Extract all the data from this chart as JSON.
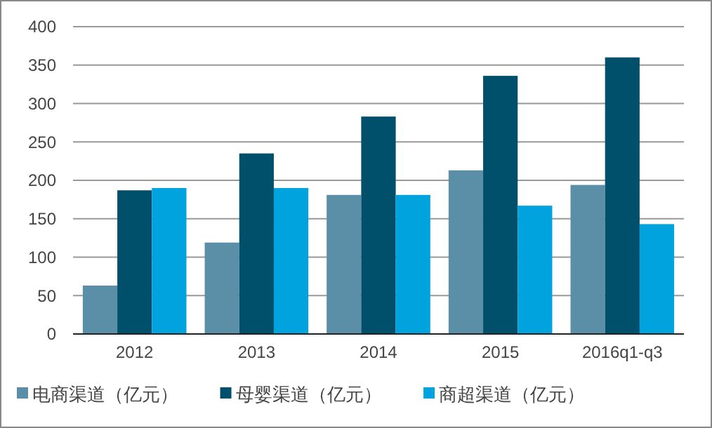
{
  "chart_data": {
    "type": "bar",
    "categories": [
      "2012",
      "2013",
      "2014",
      "2015",
      "2016q1-q3"
    ],
    "series": [
      {
        "name": "电商渠道（亿元）",
        "color": "#5b8fa8",
        "values": [
          63,
          119,
          181,
          213,
          194
        ]
      },
      {
        "name": "母婴渠道（亿元）",
        "color": "#004f6b",
        "values": [
          187,
          235,
          283,
          336,
          360
        ]
      },
      {
        "name": "商超渠道（亿元）",
        "color": "#00a3dd",
        "values": [
          190,
          190,
          181,
          167,
          143
        ]
      }
    ],
    "ylim": [
      0,
      400
    ],
    "yticks": [
      0,
      50,
      100,
      150,
      200,
      250,
      300,
      350,
      400
    ],
    "grid": "y",
    "legend": "bottom"
  }
}
